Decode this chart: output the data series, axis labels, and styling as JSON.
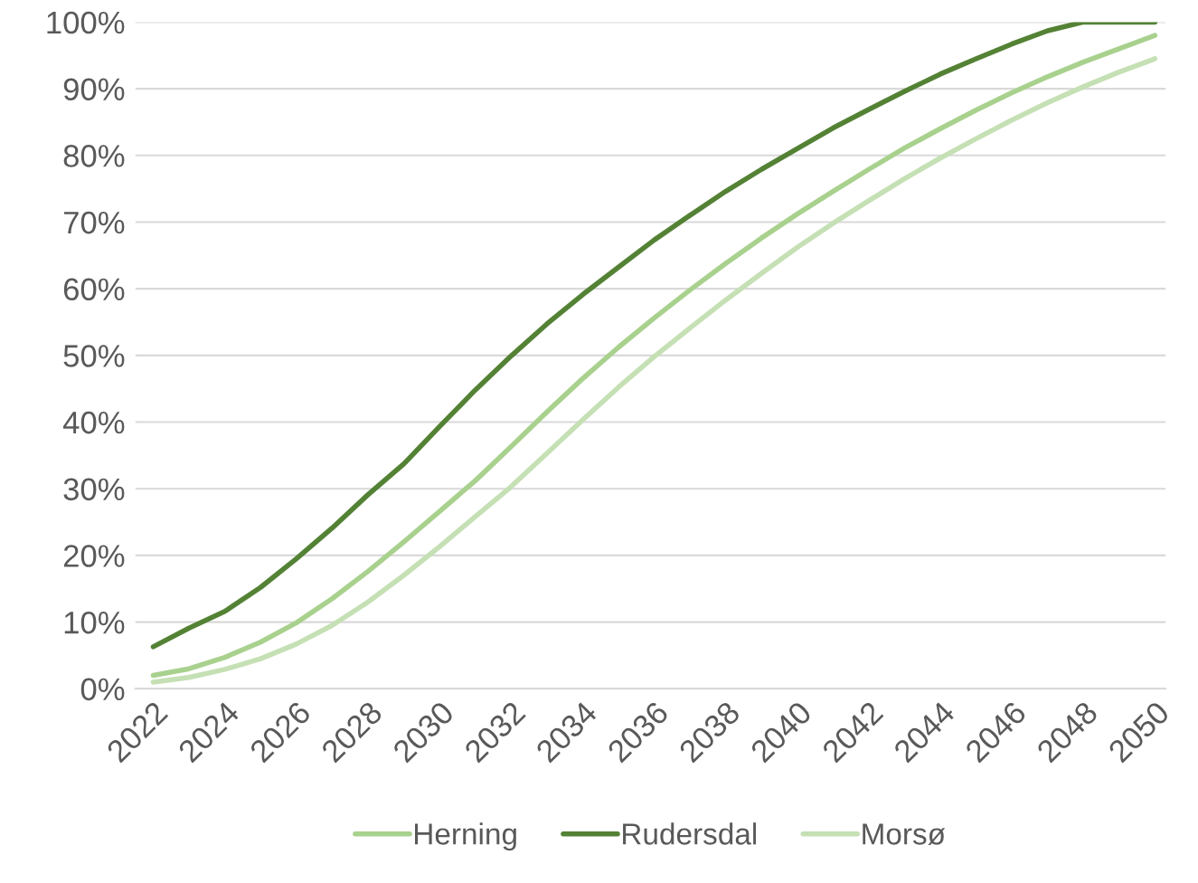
{
  "chart_data": {
    "type": "line",
    "x": [
      2022,
      2023,
      2024,
      2025,
      2026,
      2027,
      2028,
      2029,
      2030,
      2031,
      2032,
      2033,
      2034,
      2035,
      2036,
      2037,
      2038,
      2039,
      2040,
      2041,
      2042,
      2043,
      2044,
      2045,
      2046,
      2047,
      2048,
      2049,
      2050
    ],
    "series": [
      {
        "name": "Herning",
        "color": "#a9d18e",
        "values": [
          2.0,
          3.0,
          4.7,
          7.0,
          9.9,
          13.5,
          17.6,
          22.0,
          26.6,
          31.2,
          36.3,
          41.5,
          46.5,
          51.2,
          55.6,
          59.8,
          63.8,
          67.6,
          71.2,
          74.6,
          77.9,
          81.1,
          84.0,
          86.8,
          89.4,
          91.8,
          94.0,
          96.0,
          98.0
        ]
      },
      {
        "name": "Rudersdal",
        "color": "#548235",
        "values": [
          6.3,
          9.1,
          11.6,
          15.2,
          19.5,
          24.1,
          29.1,
          33.7,
          39.3,
          44.8,
          49.9,
          54.7,
          59.1,
          63.2,
          67.3,
          71.0,
          74.6,
          77.9,
          81.0,
          84.1,
          86.9,
          89.6,
          92.2,
          94.5,
          96.7,
          98.7,
          100,
          100,
          100
        ]
      },
      {
        "name": "Morsø",
        "color": "#c5e0b4",
        "values": [
          1.0,
          1.7,
          2.9,
          4.5,
          6.7,
          9.5,
          13.0,
          17.0,
          21.3,
          25.8,
          30.3,
          35.3,
          40.3,
          45.2,
          49.8,
          54.1,
          58.3,
          62.3,
          66.2,
          69.8,
          73.2,
          76.5,
          79.6,
          82.5,
          85.3,
          87.9,
          90.3,
          92.5,
          94.5
        ]
      }
    ],
    "xlim": [
      2021.5,
      2050.3
    ],
    "xticks": [
      2022,
      2024,
      2026,
      2028,
      2030,
      2032,
      2034,
      2036,
      2038,
      2040,
      2042,
      2044,
      2046,
      2048,
      2050
    ],
    "ylim": [
      0,
      100
    ],
    "yticks": [
      {
        "value": 0,
        "label": "0%"
      },
      {
        "value": 10,
        "label": "10%"
      },
      {
        "value": 20,
        "label": "20%"
      },
      {
        "value": 30,
        "label": "30%"
      },
      {
        "value": 40,
        "label": "40%"
      },
      {
        "value": 50,
        "label": "50%"
      },
      {
        "value": 60,
        "label": "60%"
      },
      {
        "value": 70,
        "label": "70%"
      },
      {
        "value": 80,
        "label": "80%"
      },
      {
        "value": 90,
        "label": "90%"
      },
      {
        "value": 100,
        "label": "100%"
      }
    ],
    "grid": "y",
    "legend": "bottom",
    "marker": "none",
    "line_style": "solid"
  }
}
